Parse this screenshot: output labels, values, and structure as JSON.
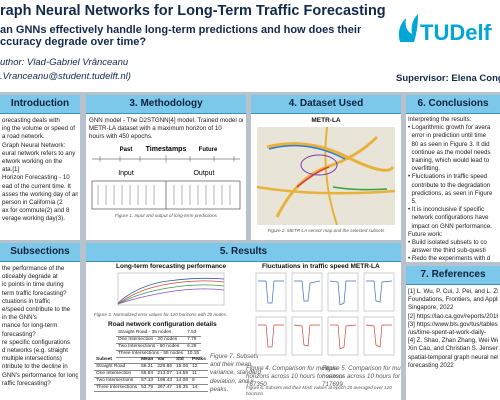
{
  "header": {
    "title": "raph Neural Networks for Long-Term Traffic Forecasting",
    "question": [
      "an GNNs effectively handle long-term predictions and how does their",
      "ccuracy degrade over time?"
    ],
    "author": "uthor: Vlad-Gabriel Vrânceanu",
    "email": ".Vranceanu@student.tudelft.nl)",
    "logo": "TUDelft",
    "supervisor": "Supervisor: Elena Conge"
  },
  "introduction": {
    "heading": "Introduction",
    "lines": [
      "orecasting deals with",
      "ing the volume or speed of",
      "a road network.",
      "Graph Neural Network:",
      "eural network refers to any",
      "etwork working on the",
      "ata.[1]",
      "Horizon Forecasting - 10",
      "ead of the current time. It",
      "asses the working day of an",
      "person in California (2",
      "ax for commute(2) and 8",
      "verage working day(3)."
    ]
  },
  "subsections": {
    "heading": "Subsections",
    "lines": [
      "the performance of the",
      "oticeably degrade at",
      "ic points in time during",
      "term traffic forecasting?",
      "ctuations in traffic",
      "e/speed contribute to the",
      "in the GNN's",
      "mance for long-term",
      "forecasting?",
      "re specific configurations",
      "d networks (e.g. straight",
      "multiple intersections)",
      "ntribute to the decline in",
      "GNN's performance for long-",
      "raffic forecasting?"
    ]
  },
  "methodology": {
    "heading": "3. Methodology",
    "lines": [
      "GNN model - The D2STGNN[4] model. Trained model on the",
      "METR-LA dataset with a maximum horizon of 10",
      "hours with 450 epochs."
    ],
    "diagram": {
      "past": "Past",
      "timestamps": "Timestamps",
      "future": "Future",
      "input": "Input",
      "output": "Output"
    },
    "caption": "Figure 1. Input and output of long-term predictions"
  },
  "dataset": {
    "heading": "4. Dataset Used",
    "map_title": "METR-LA",
    "caption": "Figure 2. METR-LA sensor map and the selected subsets"
  },
  "results": {
    "heading": "5. Results",
    "chart_title": "Long-term forecasting performance",
    "chart_caption": "Figure 3. Normalized error values for 120 horizons with 20 nodes.",
    "table_title": "Road network configuration details",
    "table1": [
      [
        "Straight Road - 35 nodes",
        "7.53"
      ],
      [
        "One Intersection - 20 nodes",
        "7.79"
      ],
      [
        "Two Intersections - 60 nodes",
        "6.29"
      ],
      [
        "Three Intersections - 55 nodes",
        "10.15"
      ]
    ],
    "table2_header": [
      "Subset",
      "Mean",
      "Var",
      "Std",
      "Peaks"
    ],
    "table2": [
      [
        "Straight Road",
        "56.21",
        "226.86",
        "15.06",
        "12"
      ],
      [
        "One Intersection",
        "55.84",
        "213.07",
        "14.59",
        "11"
      ],
      [
        "Two Intersections",
        "57.13",
        "198.43",
        "14.08",
        "9"
      ],
      [
        "Three Intersections",
        "53.79",
        "267.47",
        "16.35",
        "14"
      ]
    ],
    "fluct_title": "Fluctuations in traffic speed METR-LA",
    "caption6": "Figure 6. Subsets and their MAE values at epoch 20 averaged over 120 horizons",
    "caption7": [
      "Figure 7. Subsets",
      "and their mean,",
      "variance, standard",
      "deviation, and #",
      "peaks."
    ],
    "caption4": [
      "Figure 4. Comparison for multiple",
      "horizons across 10 hours for sensor",
      "767350"
    ],
    "caption5": [
      "Figure 5. Comparison for multiple",
      "horizons across 10 hours for sensor",
      "717699"
    ]
  },
  "conclusions": {
    "heading": "6. Conclusions",
    "lines": [
      "Interpreting the results:",
      "• Logarithmic growth for avera",
      "  error in prediction until time",
      "  80 as seen in Figure 3. It did",
      "  continue as the model needs",
      "  training, which would lead to",
      "  overfitting.",
      "• Fluctuations in traffic speed",
      "  contribute to the degradation",
      "  predictions, as seen in Figure",
      "  5.",
      "• It is inconclusive if specific",
      "  network configurations have",
      "  impact on GNN performance.",
      "Future work:",
      "• Build isolated subsets to co",
      "  answer the third sub-questi",
      "• Redo the experiments with d",
      "  that record traffic volume",
      "• Use datasets that are record",
      "  roads different from highwa"
    ]
  },
  "references": {
    "heading": "7. References",
    "lines": [
      "[1] L. Wu, P. Cui, J. Pei, and L. Zhao. Graph Neur",
      "Foundations, Frontiers, and Applications. Spri",
      "Singapore, 2022",
      "[2] https://lao.ca.gov/reports/2016/",
      "[3] https://www.bls.gov/tus/tables",
      "/us/time-spent-at-work-daily-",
      "[4] Z. Shao, Zhan Zhang, Wei Wei, Fei Wang, Y",
      "Xin Cao, and Christian S. Jensen. Decoupled d",
      "spatial-temporal graph neural network for traff",
      "forecasting 2022"
    ]
  }
}
